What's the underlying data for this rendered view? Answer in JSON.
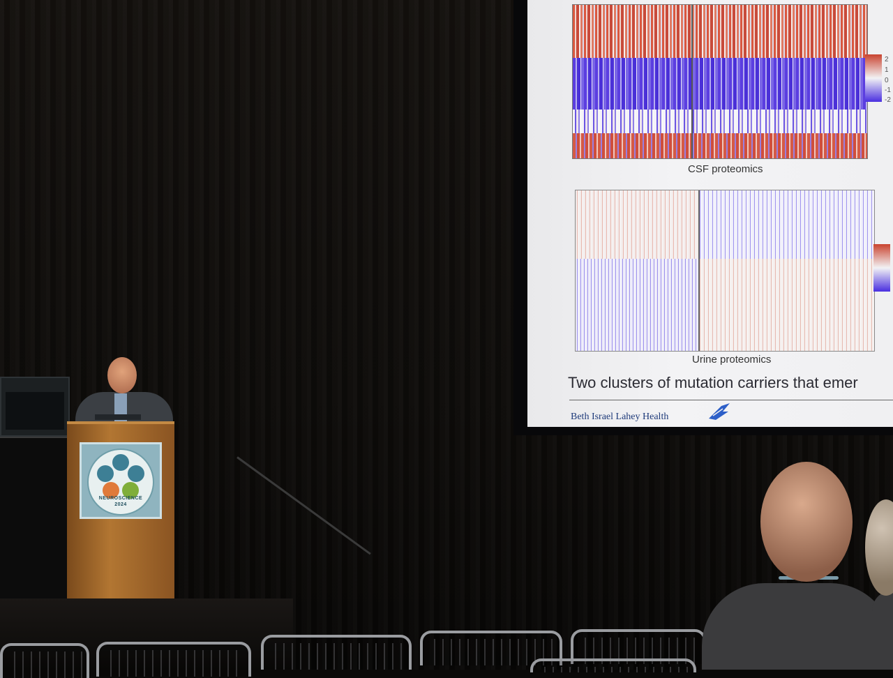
{
  "slide": {
    "caption_csf": "CSF proteomics",
    "caption_urine": "Urine proteomics",
    "title_partial": "Two clusters of mutation carriers that emer",
    "footer_logo": "Beth Israel Lahey Health",
    "legend_ticks": [
      "2",
      "1",
      "0",
      "-1",
      "-2"
    ],
    "colors": {
      "high": "#c9432f",
      "mid": "#f2f2f4",
      "low": "#4a2fe0"
    }
  },
  "podium": {
    "sign_line1": "NEUROSCIENCE",
    "sign_line2": "2024"
  }
}
